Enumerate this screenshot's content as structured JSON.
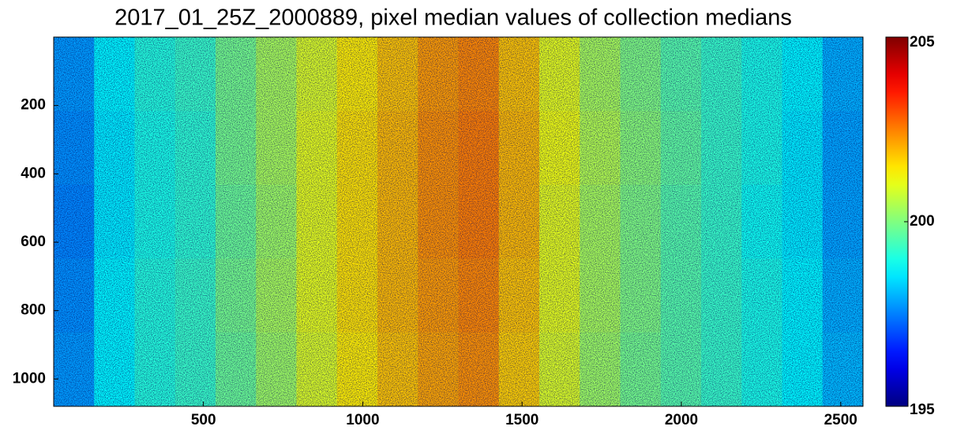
{
  "chart_data": {
    "type": "heatmap",
    "title": "2017_01_25Z_2000889, pixel median values of collection medians",
    "colormap": "jet",
    "x": [
      93.5,
      220.5,
      347.5,
      474.5,
      601.5,
      728.5,
      855.5,
      982.5,
      1109.5,
      1236.5,
      1363.5,
      1490.5,
      1617.5,
      1744.5,
      1871.5,
      1998.5,
      2125.5,
      2252.5,
      2379.5,
      2506.5
    ],
    "y": [
      108,
      324,
      540,
      756,
      972
    ],
    "values": [
      [
        197.8,
        198.7,
        199.1,
        199.3,
        199.9,
        200.4,
        200.9,
        201.4,
        201.8,
        202.2,
        202.4,
        201.8,
        201.0,
        200.4,
        200.0,
        199.6,
        199.3,
        199.0,
        198.7,
        198.0
      ],
      [
        197.7,
        198.6,
        199.0,
        199.2,
        199.9,
        200.4,
        201.0,
        201.5,
        201.9,
        202.3,
        202.5,
        201.9,
        201.1,
        200.5,
        200.1,
        199.7,
        199.3,
        199.0,
        198.6,
        197.9
      ],
      [
        197.6,
        198.6,
        199.0,
        199.2,
        199.8,
        200.3,
        201.0,
        201.5,
        201.9,
        202.3,
        202.5,
        201.9,
        201.0,
        200.4,
        200.0,
        199.6,
        199.3,
        198.9,
        198.6,
        197.9
      ],
      [
        197.7,
        198.7,
        199.1,
        199.3,
        199.9,
        200.4,
        201.0,
        201.5,
        201.9,
        202.2,
        202.4,
        201.8,
        201.0,
        200.4,
        200.0,
        199.6,
        199.3,
        199.0,
        198.7,
        198.0
      ],
      [
        197.8,
        198.7,
        199.1,
        199.3,
        199.8,
        200.3,
        200.9,
        201.4,
        201.8,
        202.1,
        202.3,
        201.7,
        200.9,
        200.3,
        199.9,
        199.6,
        199.3,
        199.0,
        198.7,
        198.1
      ]
    ],
    "xlim": [
      30,
      2570
    ],
    "ylim": [
      0,
      1080
    ],
    "y_reversed": true,
    "xticks": [
      500,
      1000,
      1500,
      2000,
      2500
    ],
    "yticks": [
      200,
      400,
      600,
      800,
      1000
    ],
    "clim": [
      195,
      205
    ],
    "cticks": [
      195,
      200,
      205
    ]
  }
}
